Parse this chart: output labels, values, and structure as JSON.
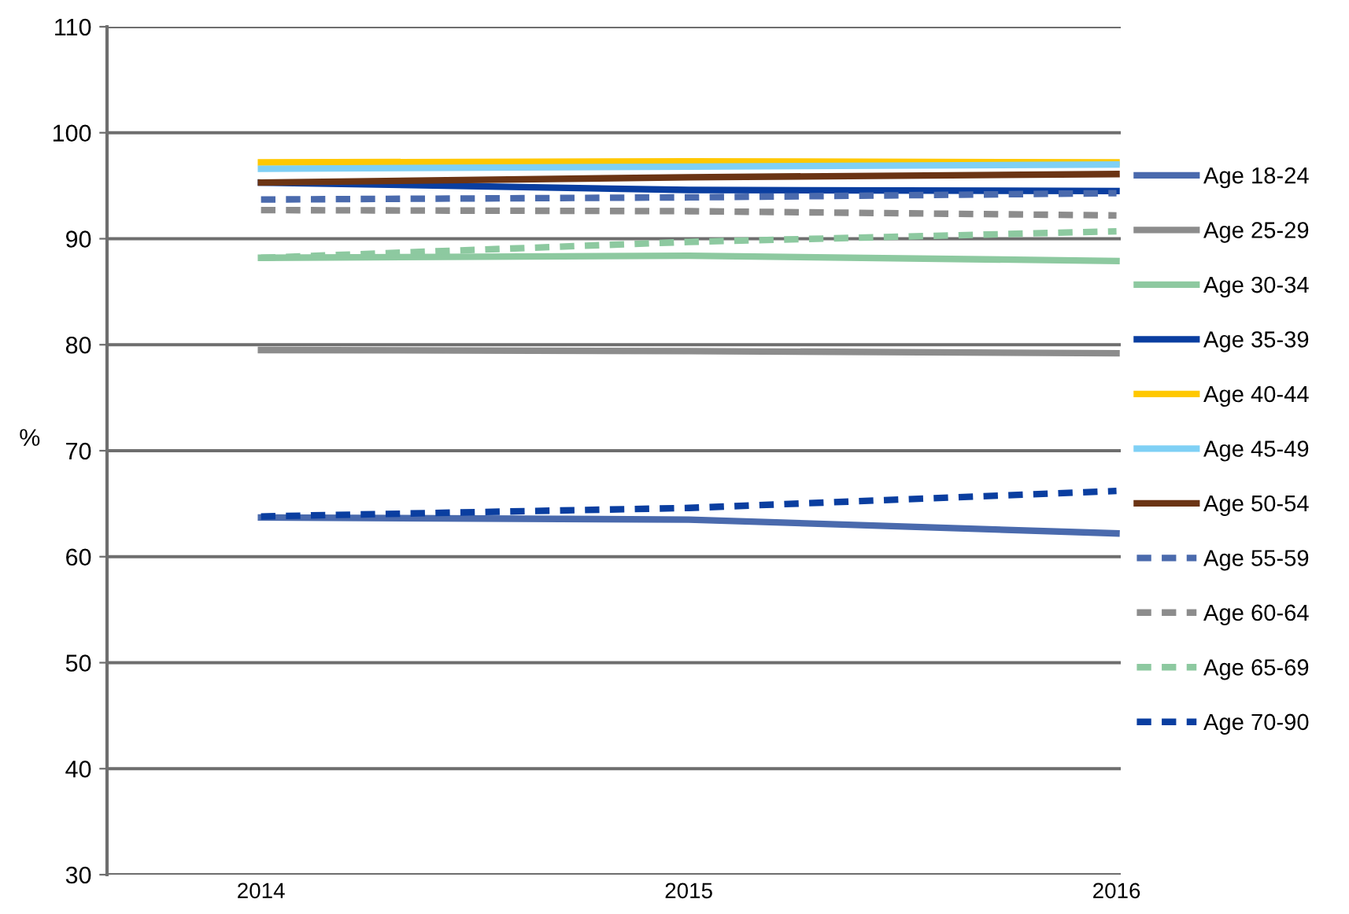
{
  "chart_data": {
    "type": "line",
    "ylabel": "%",
    "x": [
      2014,
      2015,
      2016
    ],
    "xlim": [
      2013.64,
      2016.01
    ],
    "xticks": [
      2014,
      2015,
      2016
    ],
    "ylim": [
      30,
      110
    ],
    "yticks": [
      30,
      40,
      50,
      60,
      70,
      80,
      90,
      100,
      110
    ],
    "grid": "y",
    "legend": "right",
    "series": [
      {
        "name": "Age 18-24",
        "color": "#4a6aad",
        "values": [
          63.7,
          63.5,
          62.2
        ]
      },
      {
        "name": "Age 25-29",
        "color": "#8c8c8c",
        "values": [
          79.5,
          79.4,
          79.2
        ]
      },
      {
        "name": "Age 30-34",
        "color": "#8dc9a0",
        "values": [
          88.2,
          88.4,
          87.9
        ]
      },
      {
        "name": "Age 35-39",
        "color": "#0a3ea0",
        "values": [
          95.3,
          94.6,
          94.5
        ]
      },
      {
        "name": "Age 40-44",
        "color": "#ffc800",
        "values": [
          97.2,
          97.3,
          97.2
        ]
      },
      {
        "name": "Age 45-49",
        "color": "#7fd0f5",
        "values": [
          96.6,
          96.8,
          97.0
        ]
      },
      {
        "name": "Age 50-54",
        "color": "#6b3414",
        "values": [
          95.3,
          95.8,
          96.1
        ]
      },
      {
        "name": "Age 55-59",
        "color": "#4a6aad",
        "line_style": "dashed",
        "values": [
          93.7,
          93.9,
          94.3
        ]
      },
      {
        "name": "Age 60-64",
        "color": "#8c8c8c",
        "line_style": "dashed",
        "values": [
          92.7,
          92.6,
          92.2
        ]
      },
      {
        "name": "Age 65-69",
        "color": "#8dc9a0",
        "line_style": "dashed",
        "values": [
          88.2,
          89.7,
          90.7
        ]
      },
      {
        "name": "Age 70-90",
        "color": "#0a3ea0",
        "line_style": "dashed",
        "values": [
          63.8,
          64.6,
          66.2
        ]
      }
    ]
  }
}
